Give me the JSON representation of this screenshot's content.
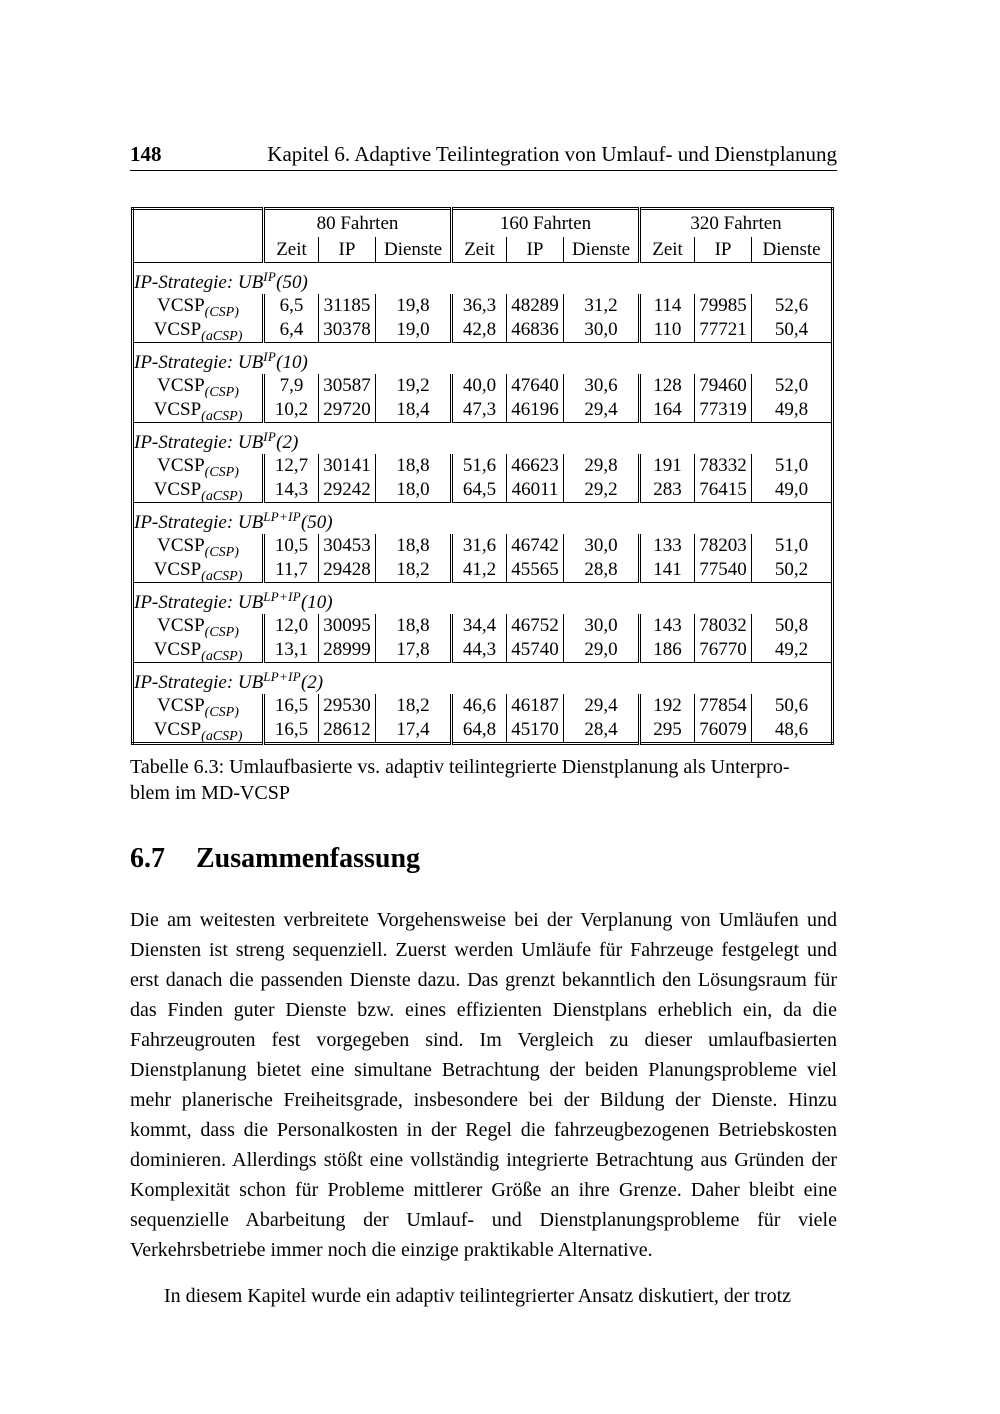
{
  "header": {
    "page_number": "148",
    "chapter_title": "Kapitel 6. Adaptive Teilintegration von Umlauf- und Dienstplanung"
  },
  "table": {
    "col_groups": [
      "80 Fahrten",
      "160 Fahrten",
      "320 Fahrten"
    ],
    "sub_headers": [
      "Zeit",
      "IP",
      "Dienste"
    ],
    "groups": [
      {
        "strategy": {
          "prefix": "IP-Strategie: UB",
          "sup": "IP",
          "suffix": "(50)"
        },
        "rows": [
          {
            "label": {
              "base": "VCSP",
              "sub": "(CSP)"
            },
            "values": [
              "6,5",
              "31185",
              "19,8",
              "36,3",
              "48289",
              "31,2",
              "114",
              "79985",
              "52,6"
            ]
          },
          {
            "label": {
              "base": "VCSP",
              "sub": "(aCSP)"
            },
            "values": [
              "6,4",
              "30378",
              "19,0",
              "42,8",
              "46836",
              "30,0",
              "110",
              "77721",
              "50,4"
            ]
          }
        ]
      },
      {
        "strategy": {
          "prefix": "IP-Strategie: UB",
          "sup": "IP",
          "suffix": "(10)"
        },
        "rows": [
          {
            "label": {
              "base": "VCSP",
              "sub": "(CSP)"
            },
            "values": [
              "7,9",
              "30587",
              "19,2",
              "40,0",
              "47640",
              "30,6",
              "128",
              "79460",
              "52,0"
            ]
          },
          {
            "label": {
              "base": "VCSP",
              "sub": "(aCSP)"
            },
            "values": [
              "10,2",
              "29720",
              "18,4",
              "47,3",
              "46196",
              "29,4",
              "164",
              "77319",
              "49,8"
            ]
          }
        ]
      },
      {
        "strategy": {
          "prefix": "IP-Strategie: UB",
          "sup": "IP",
          "suffix": "(2)"
        },
        "rows": [
          {
            "label": {
              "base": "VCSP",
              "sub": "(CSP)"
            },
            "values": [
              "12,7",
              "30141",
              "18,8",
              "51,6",
              "46623",
              "29,8",
              "191",
              "78332",
              "51,0"
            ]
          },
          {
            "label": {
              "base": "VCSP",
              "sub": "(aCSP)"
            },
            "values": [
              "14,3",
              "29242",
              "18,0",
              "64,5",
              "46011",
              "29,2",
              "283",
              "76415",
              "49,0"
            ]
          }
        ]
      },
      {
        "strategy": {
          "prefix": "IP-Strategie: UB",
          "sup": "LP+IP",
          "suffix": "(50)"
        },
        "rows": [
          {
            "label": {
              "base": "VCSP",
              "sub": "(CSP)"
            },
            "values": [
              "10,5",
              "30453",
              "18,8",
              "31,6",
              "46742",
              "30,0",
              "133",
              "78203",
              "51,0"
            ]
          },
          {
            "label": {
              "base": "VCSP",
              "sub": "(aCSP)"
            },
            "values": [
              "11,7",
              "29428",
              "18,2",
              "41,2",
              "45565",
              "28,8",
              "141",
              "77540",
              "50,2"
            ]
          }
        ]
      },
      {
        "strategy": {
          "prefix": "IP-Strategie: UB",
          "sup": "LP+IP",
          "suffix": "(10)"
        },
        "rows": [
          {
            "label": {
              "base": "VCSP",
              "sub": "(CSP)"
            },
            "values": [
              "12,0",
              "30095",
              "18,8",
              "34,4",
              "46752",
              "30,0",
              "143",
              "78032",
              "50,8"
            ]
          },
          {
            "label": {
              "base": "VCSP",
              "sub": "(aCSP)"
            },
            "values": [
              "13,1",
              "28999",
              "17,8",
              "44,3",
              "45740",
              "29,0",
              "186",
              "76770",
              "49,2"
            ]
          }
        ]
      },
      {
        "strategy": {
          "prefix": "IP-Strategie: UB",
          "sup": "LP+IP",
          "suffix": "(2)"
        },
        "rows": [
          {
            "label": {
              "base": "VCSP",
              "sub": "(CSP)"
            },
            "values": [
              "16,5",
              "29530",
              "18,2",
              "46,6",
              "46187",
              "29,4",
              "192",
              "77854",
              "50,6"
            ]
          },
          {
            "label": {
              "base": "VCSP",
              "sub": "(aCSP)"
            },
            "values": [
              "16,5",
              "28612",
              "17,4",
              "64,8",
              "45170",
              "28,4",
              "295",
              "76079",
              "48,6"
            ]
          }
        ]
      }
    ]
  },
  "caption": {
    "lines": [
      "Tabelle 6.3: Umlaufbasierte vs. adaptiv teilintegrierte Dienstplanung als Unterpro-",
      "blem im MD-VCSP"
    ]
  },
  "section": {
    "number": "6.7",
    "title": "Zusammenfassung"
  },
  "paragraphs": {
    "p1": "Die am weitesten verbreitete Vorgehensweise bei der Verplanung von Umläufen und Diensten ist streng sequenziell. Zuerst werden Umläufe für Fahrzeuge festgelegt und erst danach die passenden Dienste dazu. Das grenzt bekanntlich den Lösungsraum für das Finden guter Dienste bzw. eines effizienten Dienstplans erheblich ein, da die Fahrzeugrouten fest vorgegeben sind. Im Vergleich zu dieser umlaufbasierten Dienstplanung bietet eine simultane Betrachtung der beiden Planungsprobleme viel mehr planerische Freiheitsgrade, insbesondere bei der Bildung der Dienste. Hinzu kommt, dass die Personalkosten in der Regel die fahrzeugbezogenen Betriebskosten dominieren. Allerdings stößt eine vollständig integrierte Betrachtung aus Gründen der Komplexität schon für Probleme mittlerer Größe an ihre Grenze. Daher bleibt eine sequenzielle Abarbeitung der Umlauf- und Dienstplanungsprobleme für viele Verkehrsbetriebe immer noch die einzige praktikable Alternative.",
    "p2": "In diesem Kapitel wurde ein adaptiv teilintegrierter Ansatz diskutiert, der trotz"
  }
}
